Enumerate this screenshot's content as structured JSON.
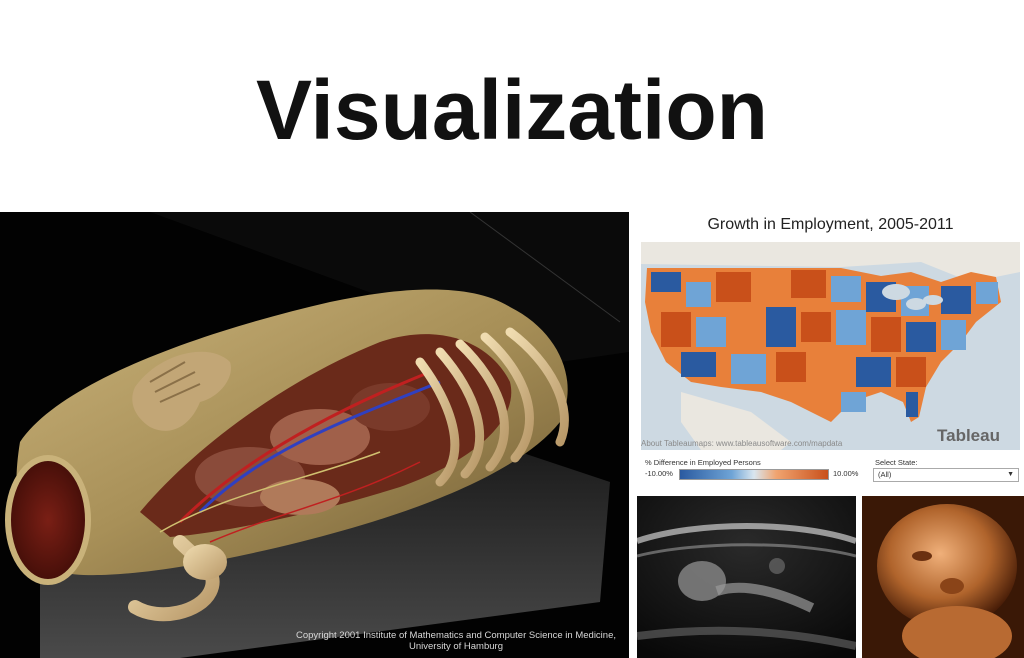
{
  "title": "Visualization",
  "anatomy": {
    "copyright_line1": "Copyright 2001 Institute of Mathematics and Computer Science in Medicine,",
    "copyright_line2": "University of Hamburg"
  },
  "employment": {
    "title": "Growth in Employment, 2005-2011",
    "about": "About Tableaumaps: www.tableausoftware.com/mapdata",
    "brand": "Tableau",
    "legend_label": "% Difference in Employed Persons",
    "legend_min": "-10.00%",
    "legend_max": "10.00%",
    "select_label": "Select State:",
    "select_value": "(All)"
  },
  "colors": {
    "blue": "#2a5aa0",
    "light_blue": "#6fa4d6",
    "orange": "#e8803a",
    "dark_orange": "#c9501a",
    "land": "#eae7e0",
    "water": "#cdd9e2"
  }
}
